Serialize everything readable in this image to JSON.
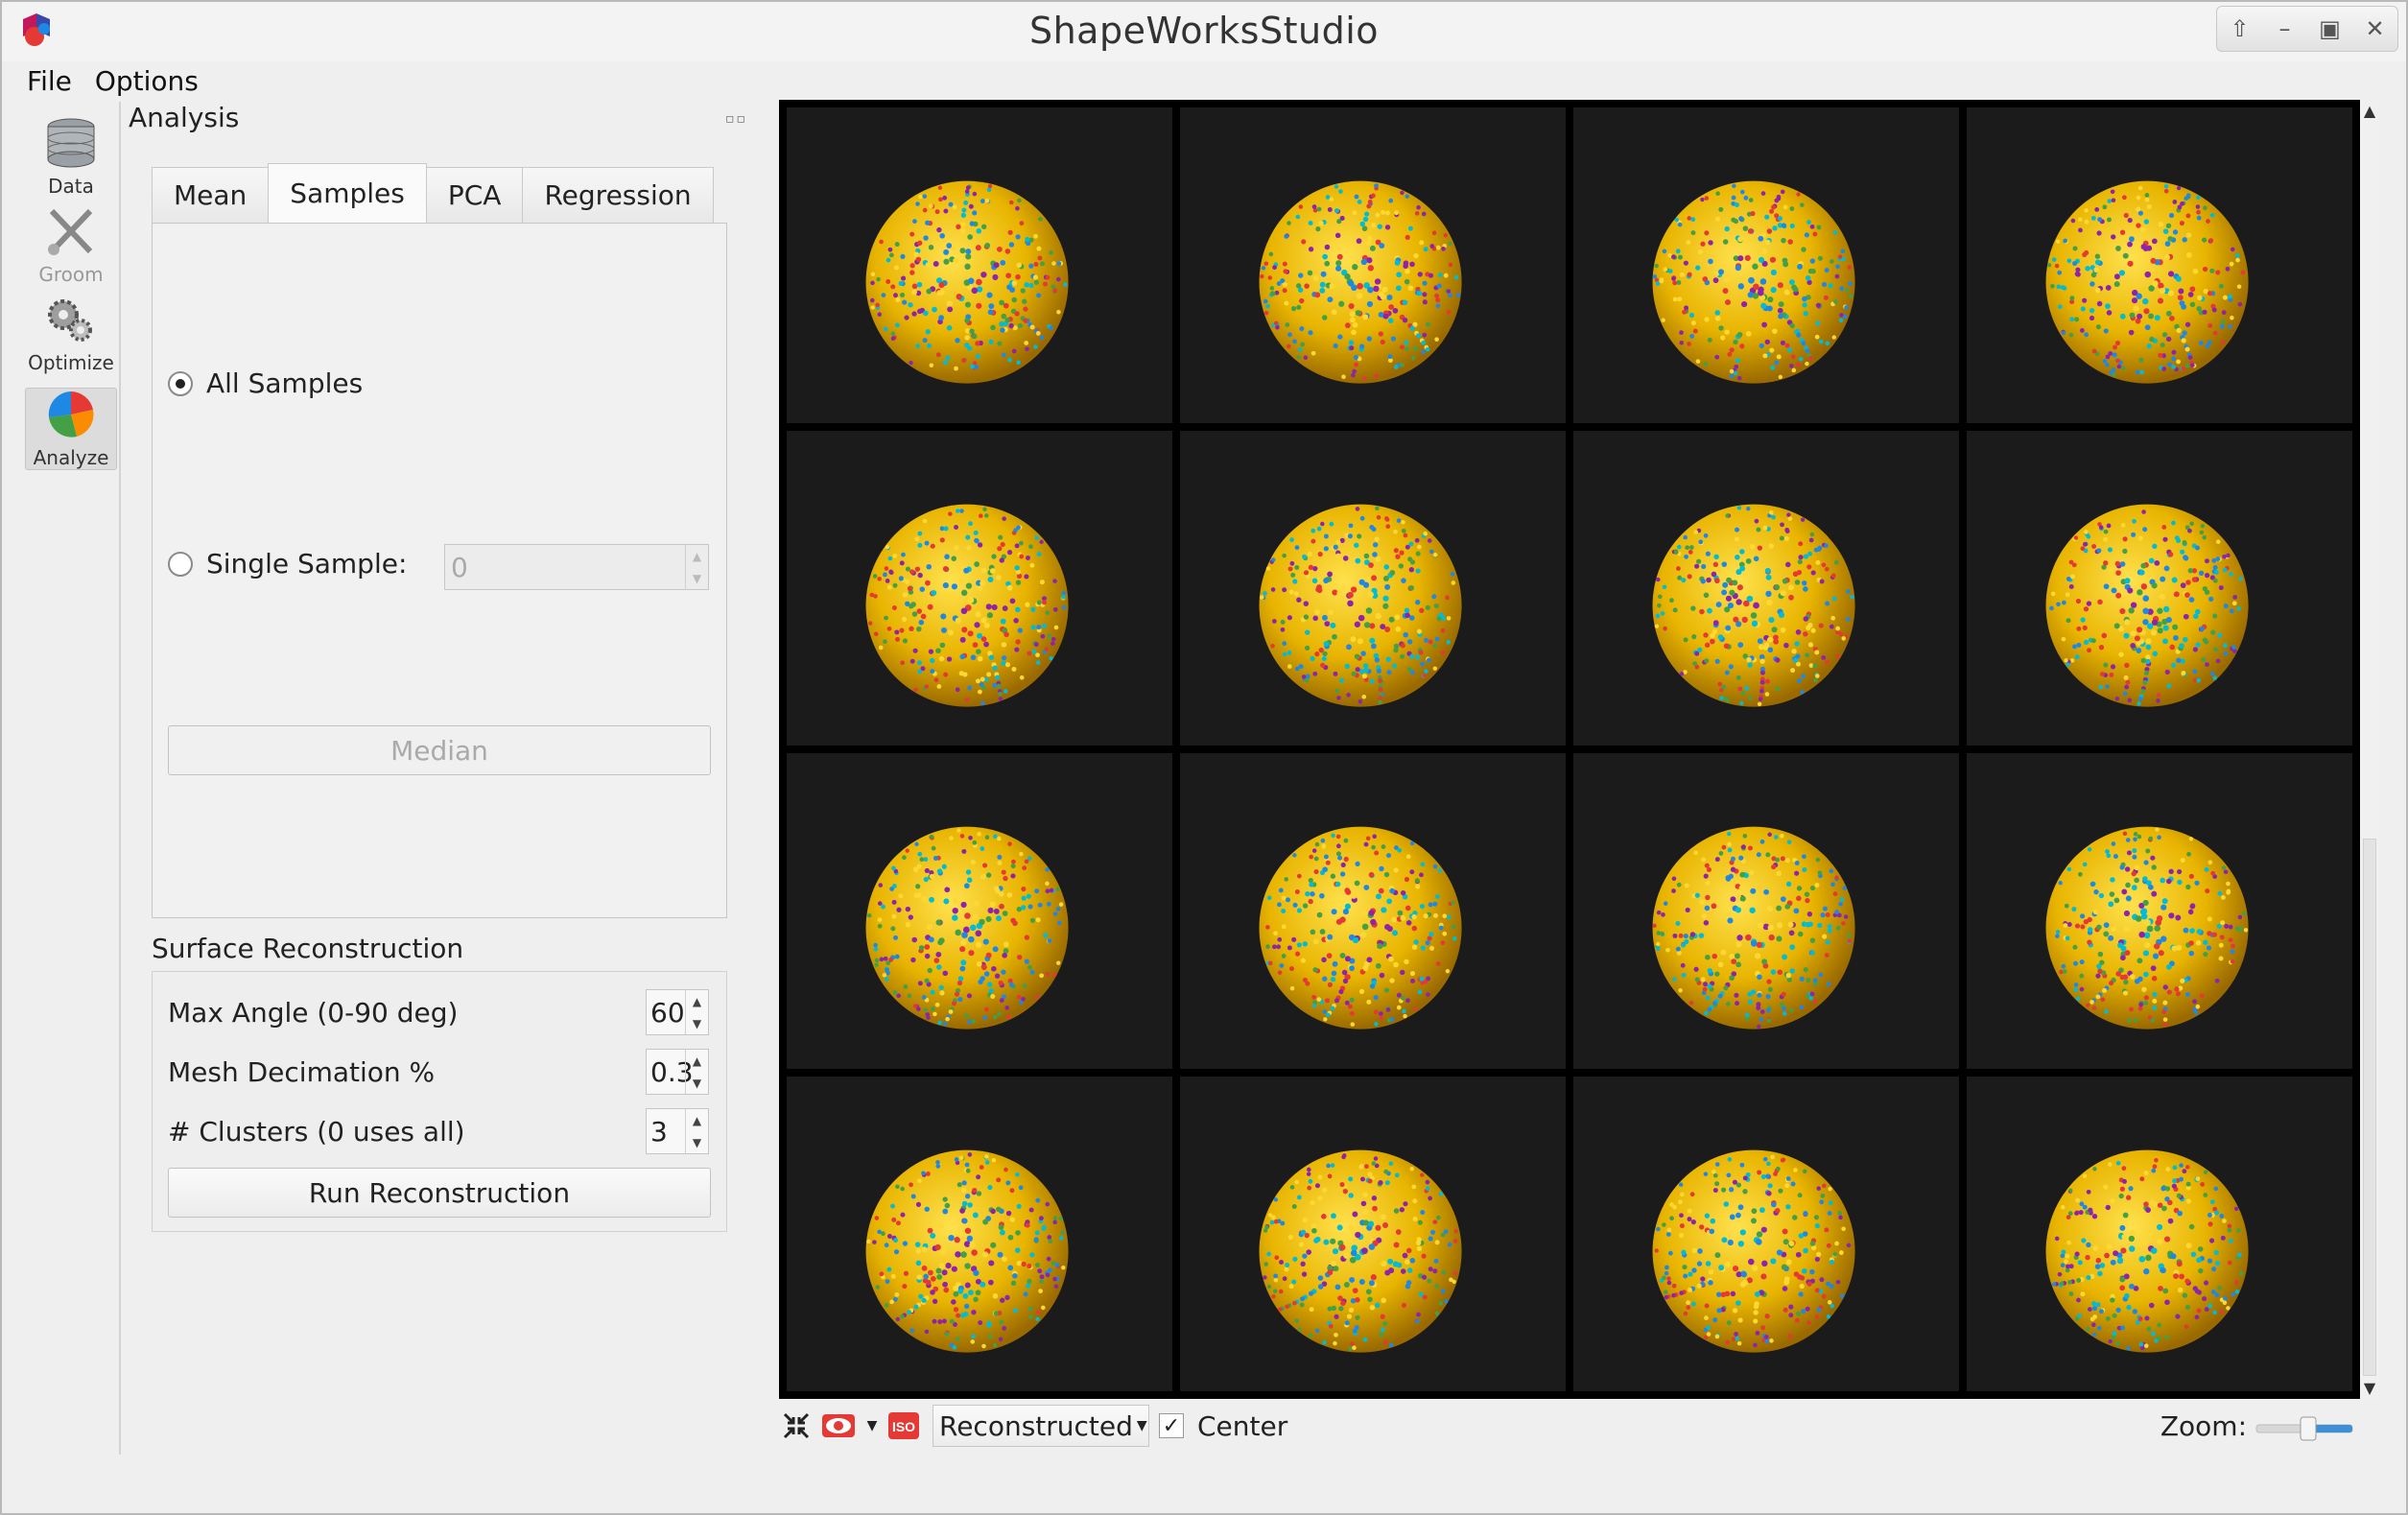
{
  "window": {
    "title": "ShapeWorksStudio"
  },
  "menu": {
    "items": [
      "File",
      "Options"
    ]
  },
  "tools": [
    {
      "label": "Data",
      "icon": "database-icon"
    },
    {
      "label": "Groom",
      "icon": "scissors-icon"
    },
    {
      "label": "Optimize",
      "icon": "gears-icon"
    },
    {
      "label": "Analyze",
      "icon": "pie-chart-icon"
    }
  ],
  "analysis": {
    "title": "Analysis",
    "tabs": [
      "Mean",
      "Samples",
      "PCA",
      "Regression"
    ],
    "all_samples_label": "All Samples",
    "single_sample_label": "Single Sample:",
    "single_sample_value": "0",
    "median_label": "Median"
  },
  "surface": {
    "title": "Surface Reconstruction",
    "max_angle_label": "Max Angle (0-90 deg)",
    "max_angle_value": "60",
    "mesh_decimation_label": "Mesh Decimation %",
    "mesh_decimation_value": "0.3",
    "clusters_label": "# Clusters (0 uses all)",
    "clusters_value": "3",
    "run_label": "Run Reconstruction"
  },
  "viewer": {
    "rows": 4,
    "cols": 4,
    "sphere_color": "#e8b400",
    "background": "#1b1b1b"
  },
  "toolbar": {
    "iso_label": "ISO",
    "display_mode": "Reconstructed",
    "center_label": "Center",
    "zoom_label": "Zoom:"
  }
}
